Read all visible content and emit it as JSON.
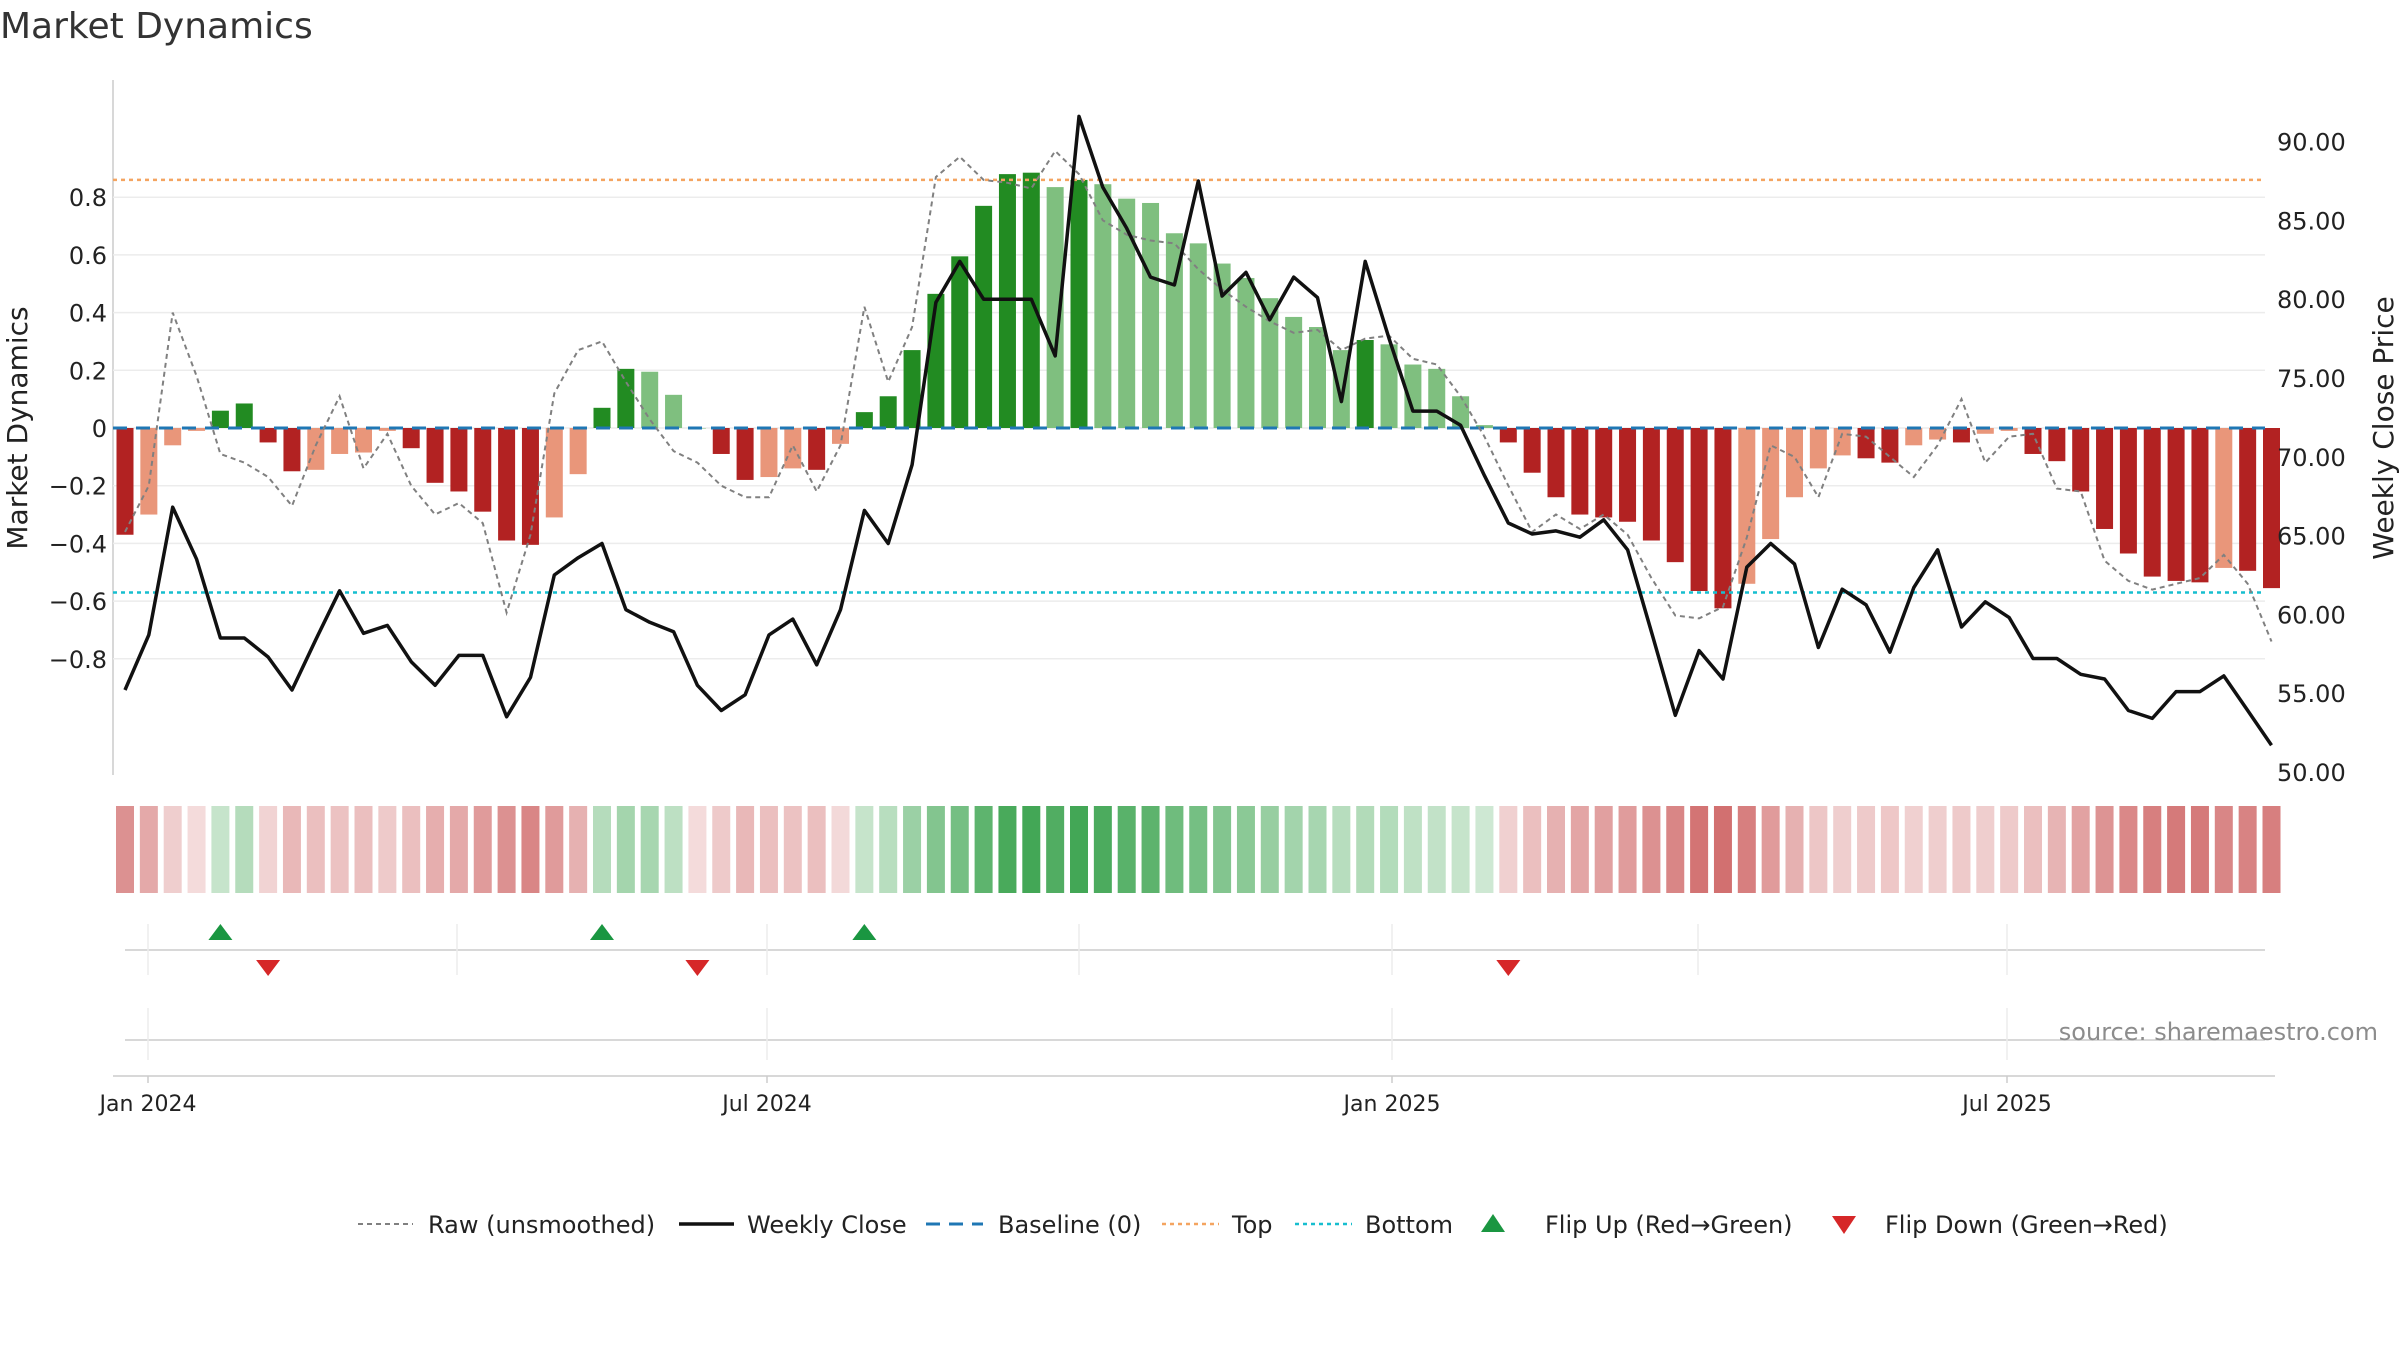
{
  "page_title": "Market Dynamics",
  "source_text": "source: sharemaestro.com",
  "colors": {
    "strong_green": "#228b22",
    "light_green": "#7fbf7f",
    "strong_red": "#b22222",
    "light_red": "#e9967a",
    "raw_line": "#808080",
    "close_line": "#111111",
    "baseline": "#1f77b4",
    "top_line": "#f4a460",
    "bottom_line": "#17becf",
    "flip_up": "#1a9641",
    "flip_down": "#d62728"
  },
  "legend": [
    {
      "label": "Raw (unsmoothed)",
      "icon": "dotted-line-icon"
    },
    {
      "label": "Weekly Close",
      "icon": "solid-line-icon"
    },
    {
      "label": "Baseline (0)",
      "icon": "dashed-line-icon"
    },
    {
      "label": "Top",
      "icon": "dotted-line-icon"
    },
    {
      "label": "Bottom",
      "icon": "dotted-line-icon"
    },
    {
      "label": "Flip Up (Red→Green)",
      "icon": "triangle-up-icon"
    },
    {
      "label": "Flip Down (Green→Red)",
      "icon": "triangle-down-icon"
    }
  ],
  "chart_data": {
    "type": "bar",
    "title": "Market Dynamics",
    "ylabel": "Market Dynamics",
    "y2label": "Weekly Close Price",
    "ylim": [
      -0.96,
      0.96
    ],
    "y2lim": [
      50,
      93
    ],
    "yticks": [
      "0.8",
      "0.6",
      "0.4",
      "0.2",
      "0",
      "−0.2",
      "−0.4",
      "−0.6",
      "−0.8"
    ],
    "y2ticks": [
      "90.00",
      "85.00",
      "80.00",
      "75.00",
      "70.00",
      "65.00",
      "60.00",
      "55.00",
      "50.00"
    ],
    "xticks": [
      "Jan 2024",
      "Jul 2024",
      "Jan 2025",
      "Jul 2025"
    ],
    "top_line": 0.86,
    "bottom_line": -0.57,
    "bar_values": [
      -0.37,
      -0.3,
      -0.06,
      -0.01,
      0.06,
      0.085,
      -0.05,
      -0.15,
      -0.145,
      -0.09,
      -0.085,
      -0.01,
      -0.07,
      -0.19,
      -0.22,
      -0.29,
      -0.39,
      -0.405,
      -0.31,
      -0.16,
      0.07,
      0.205,
      0.195,
      0.115,
      0.0,
      -0.09,
      -0.18,
      -0.17,
      -0.14,
      -0.145,
      -0.055,
      0.055,
      0.11,
      0.27,
      0.465,
      0.595,
      0.77,
      0.88,
      0.885,
      0.835,
      0.86,
      0.845,
      0.795,
      0.78,
      0.675,
      0.64,
      0.57,
      0.52,
      0.45,
      0.385,
      0.35,
      0.27,
      0.305,
      0.29,
      0.22,
      0.205,
      0.11,
      0.01,
      -0.05,
      -0.155,
      -0.24,
      -0.3,
      -0.31,
      -0.325,
      -0.39,
      -0.465,
      -0.565,
      -0.625,
      -0.54,
      -0.385,
      -0.24,
      -0.14,
      -0.095,
      -0.105,
      -0.12,
      -0.06,
      -0.04,
      -0.05,
      -0.02,
      -0.01,
      -0.09,
      -0.115,
      -0.22,
      -0.35,
      -0.435,
      -0.515,
      -0.53,
      -0.535,
      -0.485,
      -0.495,
      -0.555
    ],
    "bar_emphasis": [
      "strong",
      "light",
      "light",
      "light",
      "strong",
      "strong",
      "strong",
      "strong",
      "light",
      "light",
      "light",
      "light",
      "strong",
      "strong",
      "strong",
      "strong",
      "strong",
      "strong",
      "light",
      "light",
      "strong",
      "strong",
      "light",
      "light",
      "light",
      "strong",
      "strong",
      "light",
      "light",
      "strong",
      "light",
      "strong",
      "strong",
      "strong",
      "strong",
      "strong",
      "strong",
      "strong",
      "strong",
      "light",
      "strong",
      "light",
      "light",
      "light",
      "light",
      "light",
      "light",
      "light",
      "light",
      "light",
      "light",
      "light",
      "strong",
      "light",
      "light",
      "light",
      "light",
      "light",
      "strong",
      "strong",
      "strong",
      "strong",
      "strong",
      "strong",
      "strong",
      "strong",
      "strong",
      "strong",
      "light",
      "light",
      "light",
      "light",
      "light",
      "strong",
      "strong",
      "light",
      "light",
      "strong",
      "light",
      "light",
      "strong",
      "strong",
      "strong",
      "strong",
      "strong",
      "strong",
      "strong",
      "strong",
      "light",
      "strong",
      "strong"
    ],
    "raw_values": [
      -0.36,
      -0.2,
      0.4,
      0.18,
      -0.09,
      -0.12,
      -0.17,
      -0.27,
      -0.06,
      0.11,
      -0.14,
      -0.02,
      -0.2,
      -0.3,
      -0.26,
      -0.33,
      -0.64,
      -0.37,
      0.12,
      0.27,
      0.3,
      0.16,
      0.03,
      -0.08,
      -0.12,
      -0.2,
      -0.24,
      -0.24,
      -0.06,
      -0.22,
      -0.06,
      0.42,
      0.16,
      0.35,
      0.87,
      0.94,
      0.86,
      0.85,
      0.83,
      0.96,
      0.88,
      0.72,
      0.67,
      0.65,
      0.64,
      0.55,
      0.48,
      0.42,
      0.37,
      0.33,
      0.34,
      0.27,
      0.31,
      0.32,
      0.24,
      0.22,
      0.11,
      -0.03,
      -0.2,
      -0.36,
      -0.3,
      -0.35,
      -0.3,
      -0.37,
      -0.52,
      -0.65,
      -0.66,
      -0.62,
      -0.38,
      -0.06,
      -0.1,
      -0.24,
      -0.02,
      -0.03,
      -0.1,
      -0.17,
      -0.06,
      0.1,
      -0.12,
      -0.03,
      -0.02,
      -0.21,
      -0.22,
      -0.46,
      -0.53,
      -0.56,
      -0.54,
      -0.52,
      -0.44,
      -0.54,
      -0.74
    ],
    "close_values": [
      55.2,
      58.7,
      66.8,
      63.5,
      58.5,
      58.5,
      57.3,
      55.2,
      58.4,
      61.5,
      58.8,
      59.3,
      57.0,
      55.5,
      57.4,
      57.4,
      53.5,
      56.0,
      62.5,
      63.6,
      64.5,
      60.3,
      59.5,
      58.9,
      55.5,
      53.9,
      54.9,
      58.7,
      59.7,
      56.8,
      60.3,
      66.6,
      64.5,
      69.5,
      79.8,
      82.4,
      80.0,
      80.0,
      80.0,
      76.4,
      91.6,
      87.1,
      84.5,
      81.4,
      80.9,
      87.5,
      80.2,
      81.7,
      78.7,
      81.4,
      80.1,
      73.5,
      82.4,
      77.5,
      72.9,
      72.9,
      72.0,
      68.8,
      65.8,
      65.1,
      65.3,
      64.9,
      66.0,
      64.1,
      58.9,
      53.6,
      57.7,
      55.9,
      63.0,
      64.5,
      63.2,
      57.9,
      61.6,
      60.6,
      57.6,
      61.7,
      64.1,
      59.2,
      60.8,
      59.8,
      57.2,
      57.2,
      56.2,
      55.9,
      53.9,
      53.4,
      55.1,
      55.1,
      56.1,
      53.9,
      51.7
    ],
    "heat_strip": [
      -0.62,
      -0.45,
      -0.2,
      -0.1,
      0.2,
      0.3,
      -0.16,
      -0.35,
      -0.3,
      -0.28,
      -0.3,
      -0.22,
      -0.3,
      -0.42,
      -0.45,
      -0.55,
      -0.62,
      -0.7,
      -0.55,
      -0.4,
      0.3,
      0.4,
      0.38,
      0.25,
      -0.1,
      -0.22,
      -0.35,
      -0.3,
      -0.28,
      -0.3,
      -0.12,
      0.2,
      0.28,
      0.45,
      0.6,
      0.68,
      0.82,
      0.95,
      0.98,
      0.9,
      0.98,
      0.93,
      0.85,
      0.83,
      0.72,
      0.68,
      0.6,
      0.55,
      0.48,
      0.41,
      0.38,
      0.29,
      0.32,
      0.31,
      0.24,
      0.22,
      0.2,
      0.15,
      -0.18,
      -0.3,
      -0.4,
      -0.48,
      -0.52,
      -0.54,
      -0.62,
      -0.7,
      -0.82,
      -0.85,
      -0.75,
      -0.55,
      -0.4,
      -0.25,
      -0.2,
      -0.22,
      -0.24,
      -0.18,
      -0.2,
      -0.22,
      -0.2,
      -0.22,
      -0.3,
      -0.38,
      -0.5,
      -0.6,
      -0.68,
      -0.75,
      -0.78,
      -0.78,
      -0.7,
      -0.72,
      -0.75
    ],
    "flip_up": [
      4,
      20,
      31
    ],
    "flip_down": [
      6,
      24,
      58
    ]
  }
}
